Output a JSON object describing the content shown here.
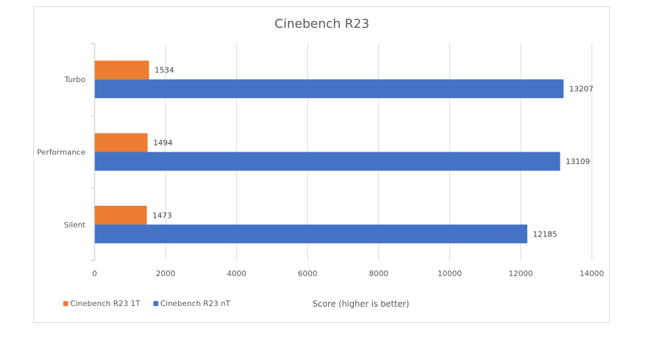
{
  "chart_data": {
    "type": "bar",
    "orientation": "horizontal",
    "title": "Cinebench R23",
    "xlabel": "Score (higher is better)",
    "ylabel": "",
    "categories": [
      "Turbo",
      "Performance",
      "Silent"
    ],
    "series": [
      {
        "name": "Cinebench R23 1T",
        "color": "#ED7D31",
        "values": [
          1534,
          1494,
          1473
        ]
      },
      {
        "name": "Cinebench R23 nT",
        "color": "#4472C4",
        "values": [
          13207,
          13109,
          12185
        ]
      }
    ],
    "xlim": [
      0,
      14000
    ],
    "xticks": [
      0,
      2000,
      4000,
      6000,
      8000,
      10000,
      12000,
      14000
    ],
    "grid": true,
    "legend_position": "bottom-left",
    "data_labels": true
  }
}
